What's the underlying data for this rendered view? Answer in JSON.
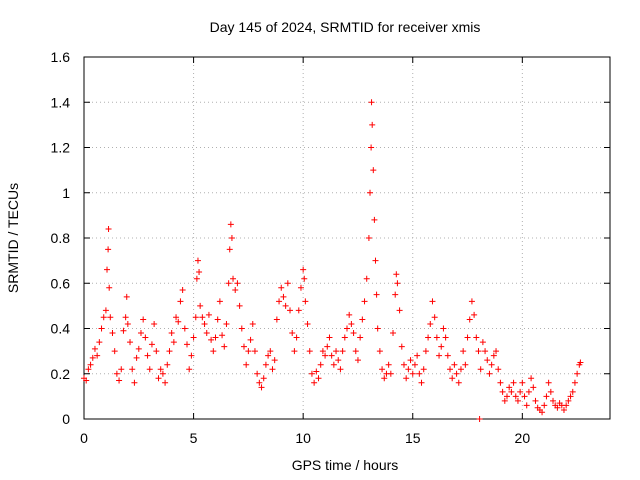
{
  "chart_data": {
    "type": "scatter",
    "title": "Day 145 of 2024, SRMTID for receiver xmis",
    "xlabel": "GPS time / hours",
    "ylabel": "SRMTID / TECUs",
    "xlim": [
      0,
      24
    ],
    "ylim": [
      0,
      1.6
    ],
    "xticks": [
      0,
      5,
      10,
      15,
      20
    ],
    "xtick_labels": [
      "0",
      "5",
      "10",
      "15",
      "20"
    ],
    "yticks": [
      0,
      0.2,
      0.4,
      0.6,
      0.8,
      1,
      1.2,
      1.4,
      1.6
    ],
    "ytick_labels": [
      "0",
      "0.2",
      "0.4",
      "0.6",
      "0.8",
      "1",
      "1.2",
      "1.4",
      "1.6"
    ],
    "grid": true,
    "marker": "+",
    "series": [
      {
        "name": "SRMTID",
        "color": "#ff0000",
        "points": [
          [
            0.0,
            0.18
          ],
          [
            0.1,
            0.17
          ],
          [
            0.2,
            0.22
          ],
          [
            0.3,
            0.24
          ],
          [
            0.4,
            0.27
          ],
          [
            0.5,
            0.31
          ],
          [
            0.6,
            0.28
          ],
          [
            0.7,
            0.34
          ],
          [
            0.8,
            0.4
          ],
          [
            0.9,
            0.45
          ],
          [
            1.0,
            0.48
          ],
          [
            1.05,
            0.66
          ],
          [
            1.1,
            0.75
          ],
          [
            1.12,
            0.84
          ],
          [
            1.15,
            0.58
          ],
          [
            1.2,
            0.45
          ],
          [
            1.3,
            0.38
          ],
          [
            1.4,
            0.3
          ],
          [
            1.5,
            0.2
          ],
          [
            1.6,
            0.17
          ],
          [
            1.7,
            0.22
          ],
          [
            1.8,
            0.39
          ],
          [
            1.9,
            0.45
          ],
          [
            1.95,
            0.54
          ],
          [
            2.0,
            0.42
          ],
          [
            2.1,
            0.34
          ],
          [
            2.2,
            0.22
          ],
          [
            2.3,
            0.16
          ],
          [
            2.4,
            0.27
          ],
          [
            2.5,
            0.31
          ],
          [
            2.6,
            0.38
          ],
          [
            2.7,
            0.44
          ],
          [
            2.8,
            0.36
          ],
          [
            2.9,
            0.28
          ],
          [
            3.0,
            0.22
          ],
          [
            3.1,
            0.33
          ],
          [
            3.2,
            0.42
          ],
          [
            3.3,
            0.3
          ],
          [
            3.4,
            0.18
          ],
          [
            3.5,
            0.22
          ],
          [
            3.6,
            0.2
          ],
          [
            3.7,
            0.16
          ],
          [
            3.8,
            0.24
          ],
          [
            3.9,
            0.3
          ],
          [
            4.0,
            0.38
          ],
          [
            4.1,
            0.34
          ],
          [
            4.2,
            0.45
          ],
          [
            4.3,
            0.43
          ],
          [
            4.4,
            0.52
          ],
          [
            4.5,
            0.57
          ],
          [
            4.6,
            0.4
          ],
          [
            4.7,
            0.33
          ],
          [
            4.8,
            0.22
          ],
          [
            4.9,
            0.28
          ],
          [
            5.0,
            0.36
          ],
          [
            5.1,
            0.45
          ],
          [
            5.15,
            0.62
          ],
          [
            5.2,
            0.7
          ],
          [
            5.25,
            0.65
          ],
          [
            5.3,
            0.5
          ],
          [
            5.4,
            0.45
          ],
          [
            5.5,
            0.42
          ],
          [
            5.6,
            0.38
          ],
          [
            5.7,
            0.46
          ],
          [
            5.8,
            0.35
          ],
          [
            5.9,
            0.3
          ],
          [
            6.0,
            0.36
          ],
          [
            6.1,
            0.44
          ],
          [
            6.2,
            0.52
          ],
          [
            6.3,
            0.37
          ],
          [
            6.4,
            0.32
          ],
          [
            6.5,
            0.42
          ],
          [
            6.6,
            0.6
          ],
          [
            6.65,
            0.75
          ],
          [
            6.7,
            0.86
          ],
          [
            6.75,
            0.8
          ],
          [
            6.8,
            0.62
          ],
          [
            6.9,
            0.57
          ],
          [
            7.0,
            0.6
          ],
          [
            7.1,
            0.5
          ],
          [
            7.2,
            0.4
          ],
          [
            7.3,
            0.32
          ],
          [
            7.4,
            0.24
          ],
          [
            7.5,
            0.3
          ],
          [
            7.6,
            0.35
          ],
          [
            7.7,
            0.42
          ],
          [
            7.8,
            0.3
          ],
          [
            7.9,
            0.2
          ],
          [
            8.0,
            0.16
          ],
          [
            8.1,
            0.14
          ],
          [
            8.2,
            0.18
          ],
          [
            8.3,
            0.24
          ],
          [
            8.4,
            0.28
          ],
          [
            8.5,
            0.3
          ],
          [
            8.6,
            0.22
          ],
          [
            8.7,
            0.26
          ],
          [
            8.8,
            0.44
          ],
          [
            8.9,
            0.52
          ],
          [
            9.0,
            0.58
          ],
          [
            9.1,
            0.54
          ],
          [
            9.2,
            0.5
          ],
          [
            9.3,
            0.6
          ],
          [
            9.4,
            0.48
          ],
          [
            9.5,
            0.38
          ],
          [
            9.6,
            0.3
          ],
          [
            9.7,
            0.36
          ],
          [
            9.8,
            0.48
          ],
          [
            9.9,
            0.58
          ],
          [
            10.0,
            0.66
          ],
          [
            10.05,
            0.62
          ],
          [
            10.1,
            0.52
          ],
          [
            10.2,
            0.42
          ],
          [
            10.3,
            0.3
          ],
          [
            10.4,
            0.2
          ],
          [
            10.5,
            0.16
          ],
          [
            10.6,
            0.21
          ],
          [
            10.7,
            0.18
          ],
          [
            10.8,
            0.24
          ],
          [
            10.9,
            0.3
          ],
          [
            11.0,
            0.28
          ],
          [
            11.1,
            0.32
          ],
          [
            11.2,
            0.36
          ],
          [
            11.3,
            0.28
          ],
          [
            11.4,
            0.24
          ],
          [
            11.5,
            0.3
          ],
          [
            11.6,
            0.26
          ],
          [
            11.7,
            0.22
          ],
          [
            11.8,
            0.3
          ],
          [
            11.9,
            0.36
          ],
          [
            12.0,
            0.4
          ],
          [
            12.1,
            0.46
          ],
          [
            12.2,
            0.42
          ],
          [
            12.3,
            0.38
          ],
          [
            12.4,
            0.3
          ],
          [
            12.5,
            0.26
          ],
          [
            12.6,
            0.36
          ],
          [
            12.7,
            0.44
          ],
          [
            12.8,
            0.52
          ],
          [
            12.9,
            0.62
          ],
          [
            13.0,
            0.8
          ],
          [
            13.05,
            1.0
          ],
          [
            13.1,
            1.2
          ],
          [
            13.12,
            1.4
          ],
          [
            13.15,
            1.3
          ],
          [
            13.2,
            1.1
          ],
          [
            13.25,
            0.88
          ],
          [
            13.3,
            0.7
          ],
          [
            13.35,
            0.55
          ],
          [
            13.4,
            0.4
          ],
          [
            13.5,
            0.3
          ],
          [
            13.6,
            0.22
          ],
          [
            13.7,
            0.18
          ],
          [
            13.8,
            0.2
          ],
          [
            13.9,
            0.24
          ],
          [
            14.0,
            0.2
          ],
          [
            14.1,
            0.38
          ],
          [
            14.2,
            0.55
          ],
          [
            14.25,
            0.64
          ],
          [
            14.3,
            0.6
          ],
          [
            14.4,
            0.48
          ],
          [
            14.5,
            0.32
          ],
          [
            14.6,
            0.24
          ],
          [
            14.7,
            0.18
          ],
          [
            14.8,
            0.22
          ],
          [
            14.9,
            0.26
          ],
          [
            15.0,
            0.2
          ],
          [
            15.1,
            0.24
          ],
          [
            15.2,
            0.28
          ],
          [
            15.3,
            0.2
          ],
          [
            15.4,
            0.16
          ],
          [
            15.5,
            0.22
          ],
          [
            15.6,
            0.3
          ],
          [
            15.7,
            0.36
          ],
          [
            15.8,
            0.42
          ],
          [
            15.9,
            0.52
          ],
          [
            16.0,
            0.45
          ],
          [
            16.1,
            0.36
          ],
          [
            16.2,
            0.28
          ],
          [
            16.3,
            0.32
          ],
          [
            16.4,
            0.4
          ],
          [
            16.5,
            0.36
          ],
          [
            16.6,
            0.28
          ],
          [
            16.7,
            0.22
          ],
          [
            16.8,
            0.18
          ],
          [
            16.9,
            0.24
          ],
          [
            17.0,
            0.2
          ],
          [
            17.1,
            0.16
          ],
          [
            17.2,
            0.22
          ],
          [
            17.3,
            0.3
          ],
          [
            17.4,
            0.24
          ],
          [
            17.5,
            0.36
          ],
          [
            17.6,
            0.44
          ],
          [
            17.7,
            0.52
          ],
          [
            17.8,
            0.46
          ],
          [
            17.9,
            0.36
          ],
          [
            18.0,
            0.3
          ],
          [
            18.05,
            0.0
          ],
          [
            18.1,
            0.22
          ],
          [
            18.2,
            0.34
          ],
          [
            18.3,
            0.3
          ],
          [
            18.4,
            0.26
          ],
          [
            18.5,
            0.2
          ],
          [
            18.6,
            0.24
          ],
          [
            18.7,
            0.28
          ],
          [
            18.8,
            0.3
          ],
          [
            18.9,
            0.22
          ],
          [
            19.0,
            0.16
          ],
          [
            19.1,
            0.12
          ],
          [
            19.2,
            0.08
          ],
          [
            19.3,
            0.1
          ],
          [
            19.4,
            0.14
          ],
          [
            19.5,
            0.12
          ],
          [
            19.6,
            0.16
          ],
          [
            19.7,
            0.1
          ],
          [
            19.8,
            0.08
          ],
          [
            19.9,
            0.12
          ],
          [
            20.0,
            0.16
          ],
          [
            20.1,
            0.1
          ],
          [
            20.2,
            0.06
          ],
          [
            20.3,
            0.12
          ],
          [
            20.4,
            0.18
          ],
          [
            20.5,
            0.14
          ],
          [
            20.6,
            0.08
          ],
          [
            20.7,
            0.05
          ],
          [
            20.8,
            0.04
          ],
          [
            20.9,
            0.03
          ],
          [
            21.0,
            0.06
          ],
          [
            21.1,
            0.1
          ],
          [
            21.2,
            0.16
          ],
          [
            21.3,
            0.12
          ],
          [
            21.4,
            0.08
          ],
          [
            21.5,
            0.06
          ],
          [
            21.6,
            0.05
          ],
          [
            21.7,
            0.07
          ],
          [
            21.8,
            0.06
          ],
          [
            21.9,
            0.04
          ],
          [
            22.0,
            0.06
          ],
          [
            22.1,
            0.08
          ],
          [
            22.2,
            0.1
          ],
          [
            22.3,
            0.12
          ],
          [
            22.4,
            0.16
          ],
          [
            22.5,
            0.2
          ],
          [
            22.6,
            0.24
          ],
          [
            22.65,
            0.25
          ]
        ]
      }
    ]
  }
}
